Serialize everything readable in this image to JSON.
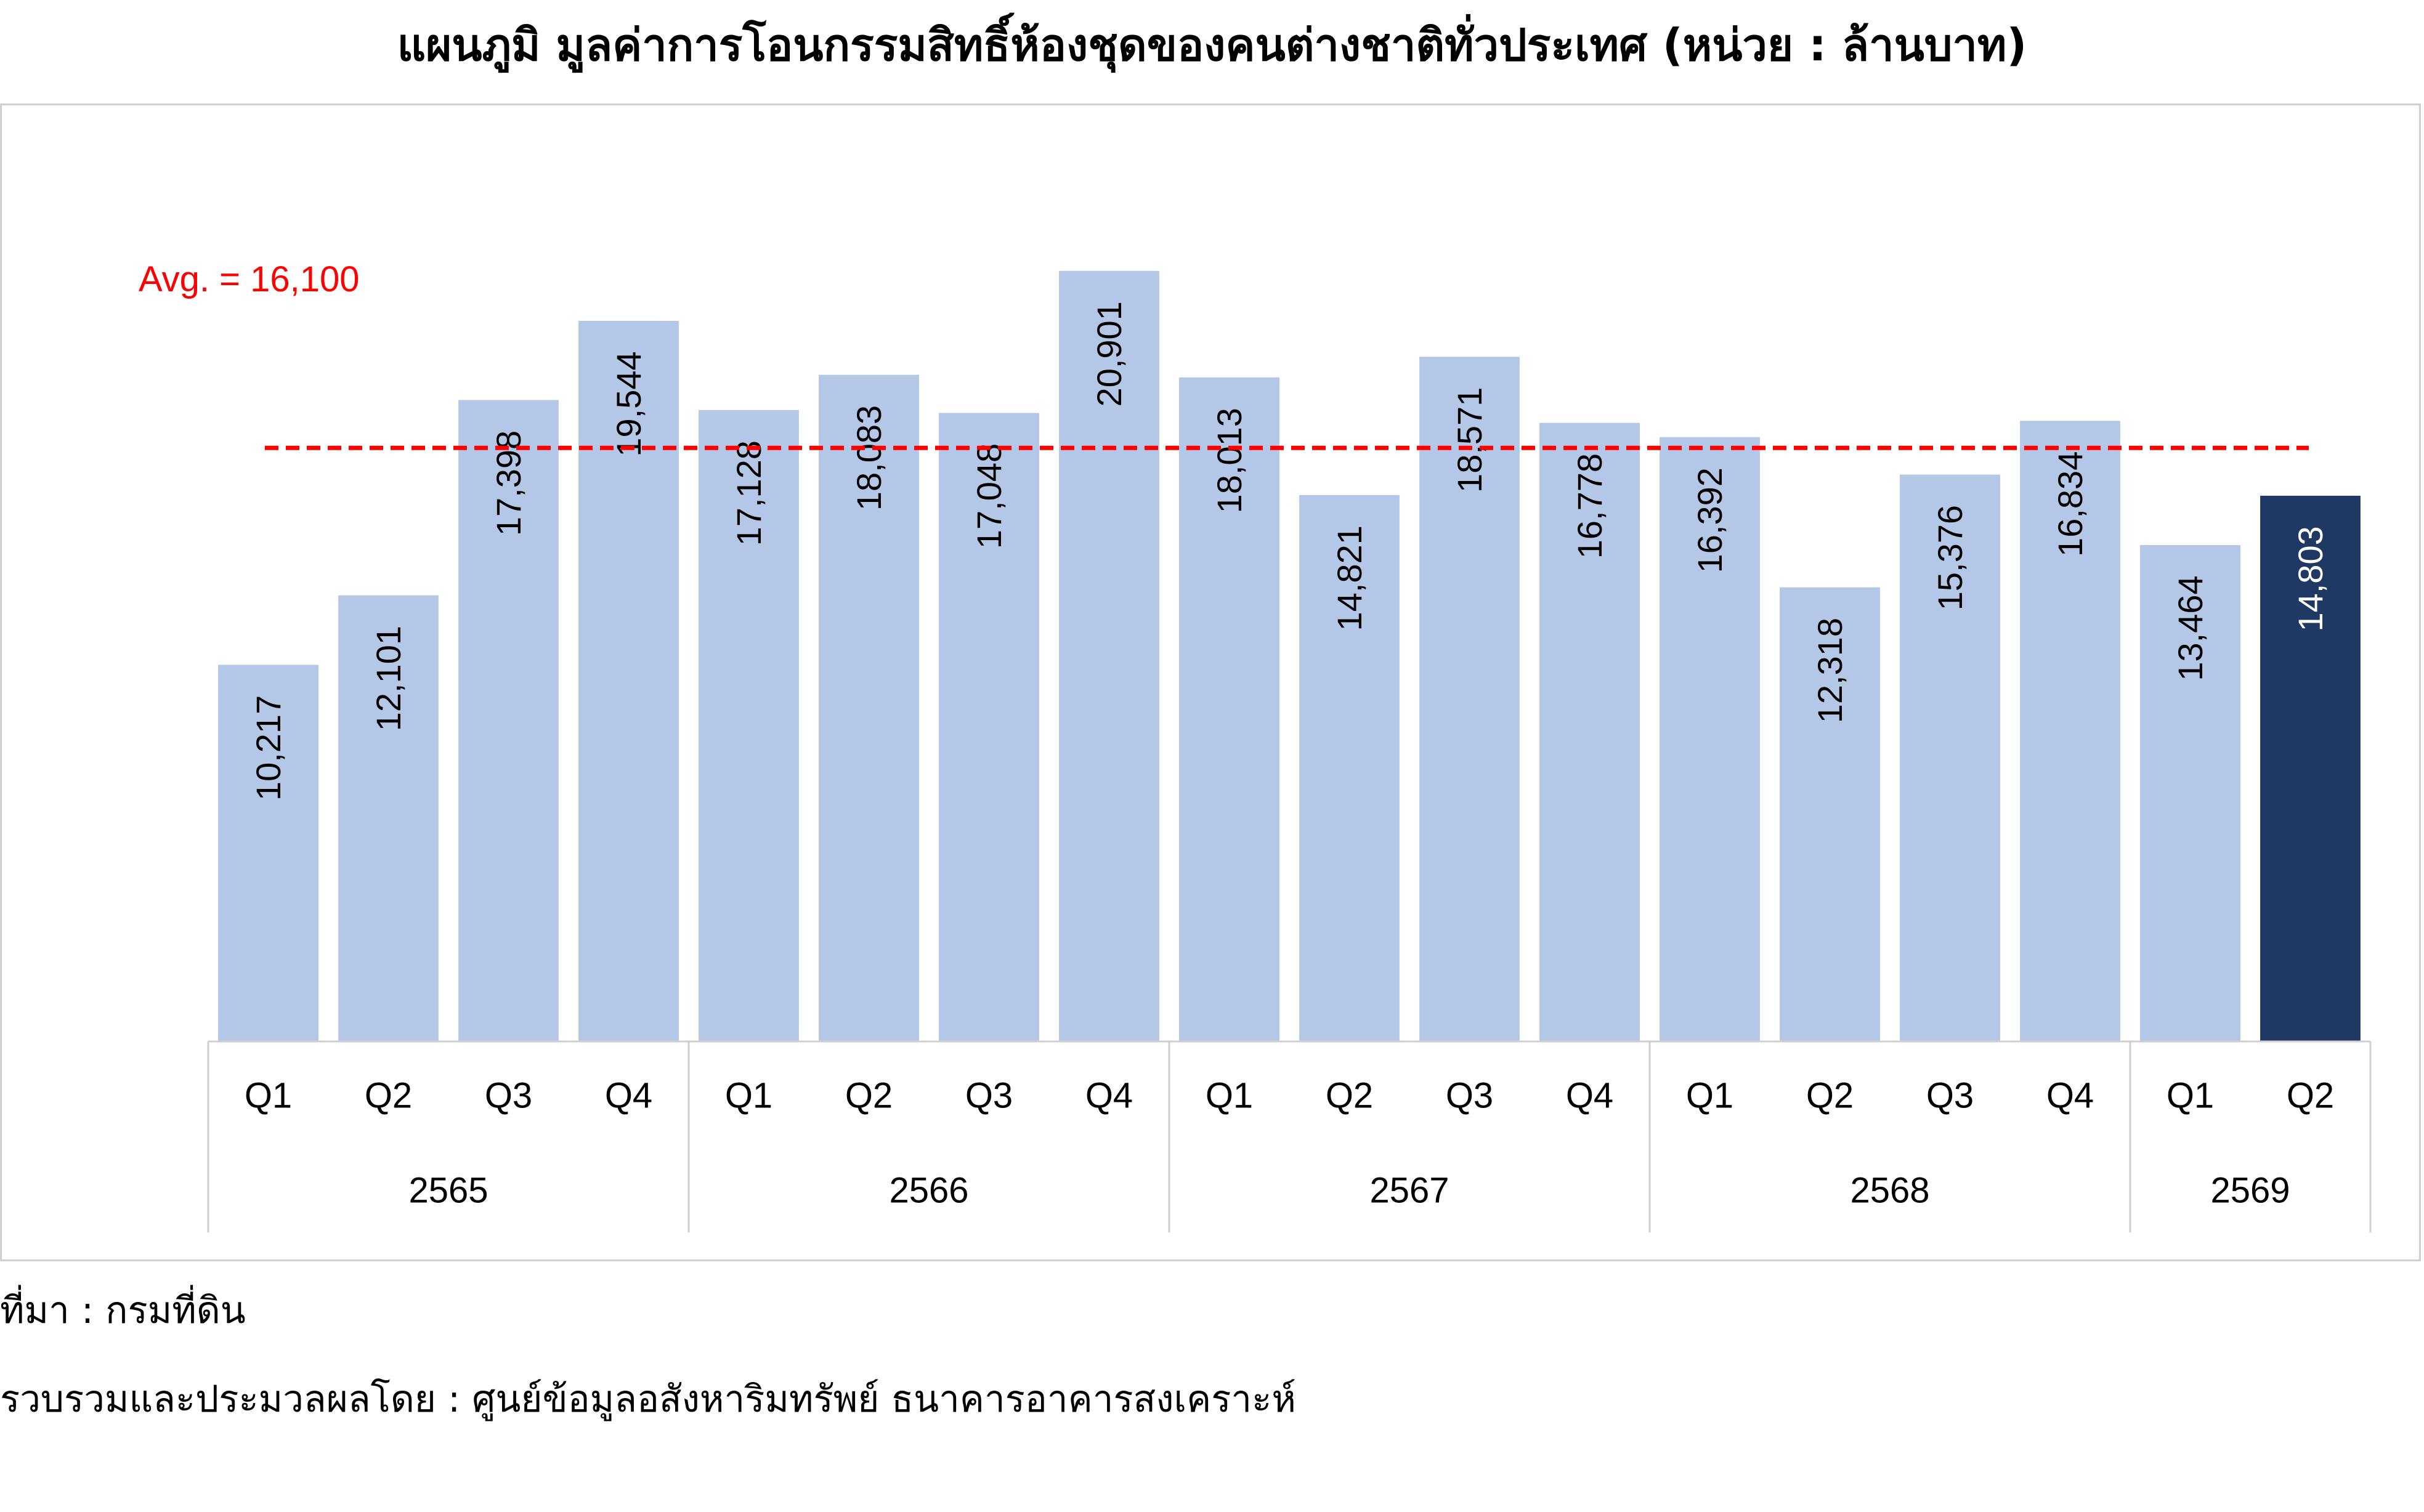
{
  "chart_data": {
    "type": "bar",
    "title": "แผนภูมิ มูลค่าการโอนกรรมสิทธิ์ห้องชุดของคนต่างชาติทั่วประเทศ (หน่วย : ล้านบาท)",
    "categories": [
      "Q1",
      "Q2",
      "Q3",
      "Q4",
      "Q1",
      "Q2",
      "Q3",
      "Q4",
      "Q1",
      "Q2",
      "Q3",
      "Q4",
      "Q1",
      "Q2",
      "Q3",
      "Q4",
      "Q1",
      "Q2"
    ],
    "groups": [
      {
        "label": "2565",
        "count": 4
      },
      {
        "label": "2566",
        "count": 4
      },
      {
        "label": "2567",
        "count": 4
      },
      {
        "label": "2568",
        "count": 4
      },
      {
        "label": "2569",
        "count": 2
      }
    ],
    "values": [
      10217,
      12101,
      17398,
      19544,
      17128,
      18083,
      17048,
      20901,
      18013,
      14821,
      18571,
      16778,
      16392,
      12318,
      15376,
      16834,
      13464,
      14803
    ],
    "value_labels": [
      "10,217",
      "12,101",
      "17,398",
      "19,544",
      "17,128",
      "18,083",
      "17,048",
      "20,901",
      "18,013",
      "14,821",
      "18,571",
      "16,778",
      "16,392",
      "12,318",
      "15,376",
      "16,834",
      "13,464",
      "14,803"
    ],
    "highlight_index": 17,
    "ylim": [
      0,
      21800
    ],
    "average": {
      "value": 16100,
      "label": "Avg. = 16,100"
    },
    "xlabel": "",
    "ylabel": "",
    "legend": "none",
    "grid": false,
    "colors": {
      "bar": "#b4c7e7",
      "highlight": "#203864",
      "average_line": "#ff0000",
      "axis_line": "#d0d0d0",
      "label": "#000000",
      "highlight_label": "#ffffff"
    }
  },
  "footnotes": {
    "source": "ที่มา : กรมที่ดิน",
    "compiled_by": "รวบรวมและประมวลผลโดย : ศูนย์ข้อมูลอสังหาริมทรัพย์ ธนาคารอาคารสงเคราะห์"
  }
}
